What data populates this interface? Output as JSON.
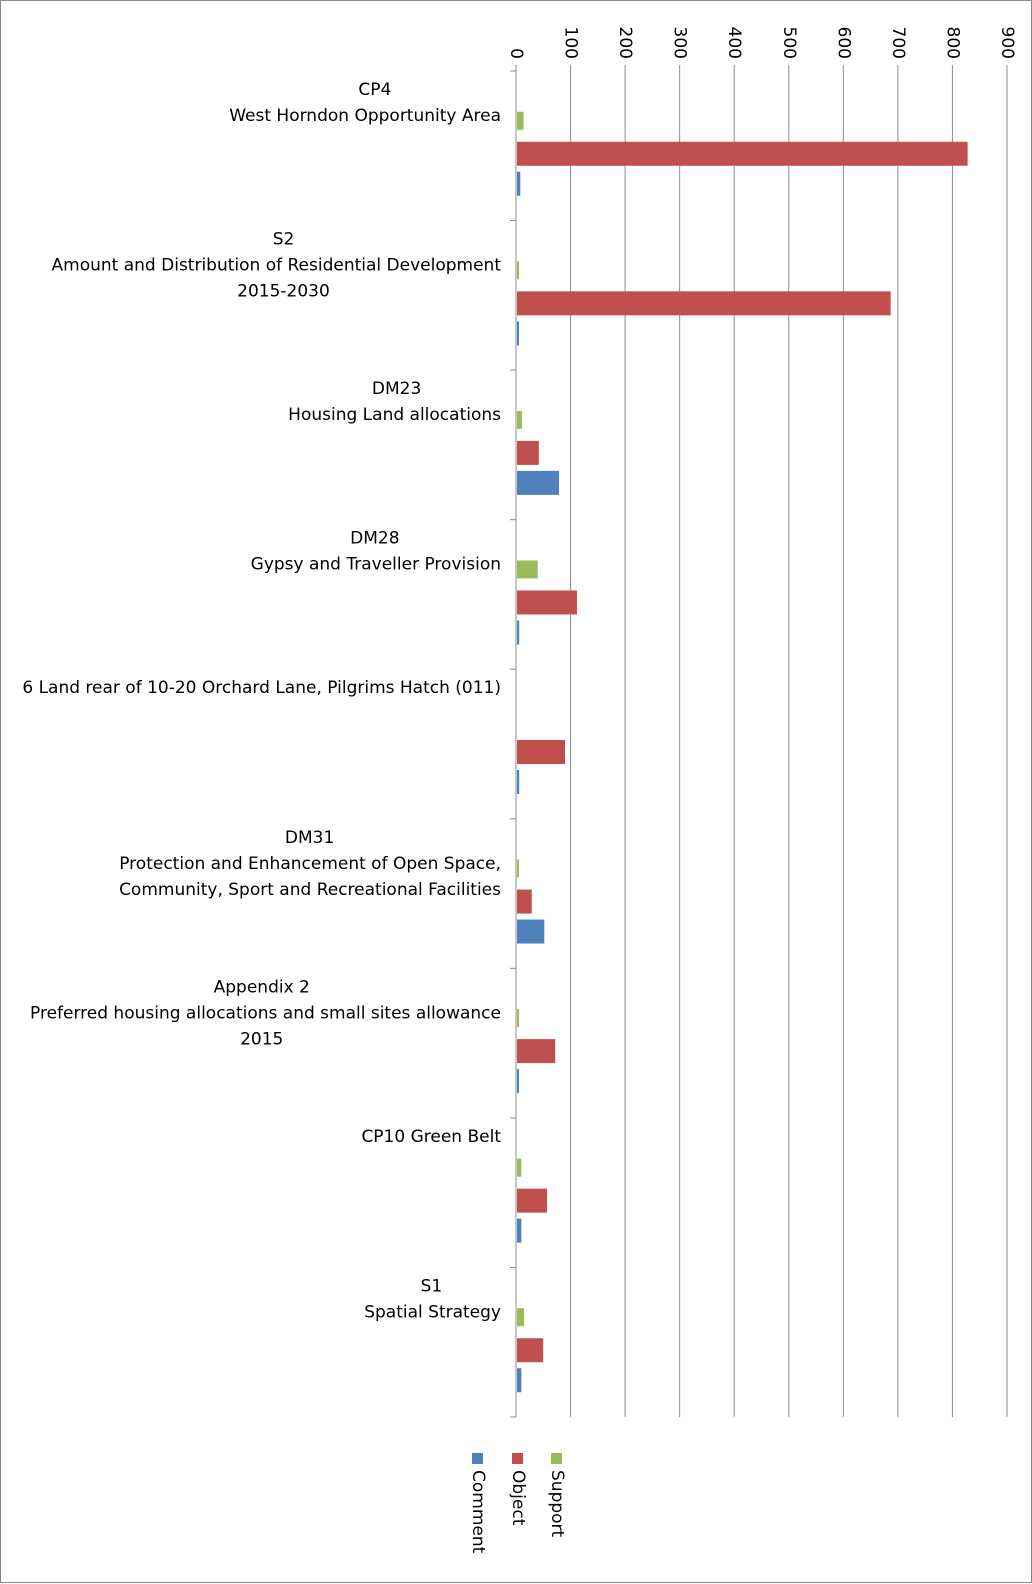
{
  "chart_data": {
    "type": "bar",
    "orientation": "horizontal",
    "categories": [
      [
        "CP4",
        "West Horndon Opportunity Area"
      ],
      [
        "S2",
        "Amount and Distribution of Residential Development",
        "2015-2030"
      ],
      [
        "DM23",
        "Housing Land allocations"
      ],
      [
        "DM28",
        "Gypsy and Traveller Provision"
      ],
      [
        "6 Land rear of 10-20 Orchard Lane, Pilgrims Hatch (011)"
      ],
      [
        "DM31",
        "Protection and Enhancement of Open Space,",
        "Community, Sport and Recreational Facilities"
      ],
      [
        "Appendix 2",
        "Preferred housing allocations and small sites allowance",
        "2015"
      ],
      [
        "CP10 Green Belt"
      ],
      [
        "S1",
        "Spatial Strategy"
      ]
    ],
    "series": [
      {
        "name": "Support",
        "color": "#9bbb59",
        "values": [
          12,
          3,
          9,
          38,
          0,
          1,
          1,
          8,
          13
        ]
      },
      {
        "name": "Object",
        "color": "#c0504d",
        "values": [
          826,
          685,
          40,
          110,
          88,
          27,
          70,
          55,
          48
        ]
      },
      {
        "name": "Comment",
        "color": "#4f81bd",
        "values": [
          6,
          1,
          77,
          4,
          4,
          50,
          2,
          8,
          8
        ]
      }
    ],
    "axis": {
      "min": 0,
      "max": 900,
      "major_unit": 100,
      "tick_labels": [
        "0",
        "100",
        "200",
        "300",
        "400",
        "500",
        "600",
        "700",
        "800",
        "900"
      ]
    },
    "grid": true,
    "legend_position": "bottom",
    "legend": [
      "Support",
      "Object",
      "Comment"
    ]
  }
}
